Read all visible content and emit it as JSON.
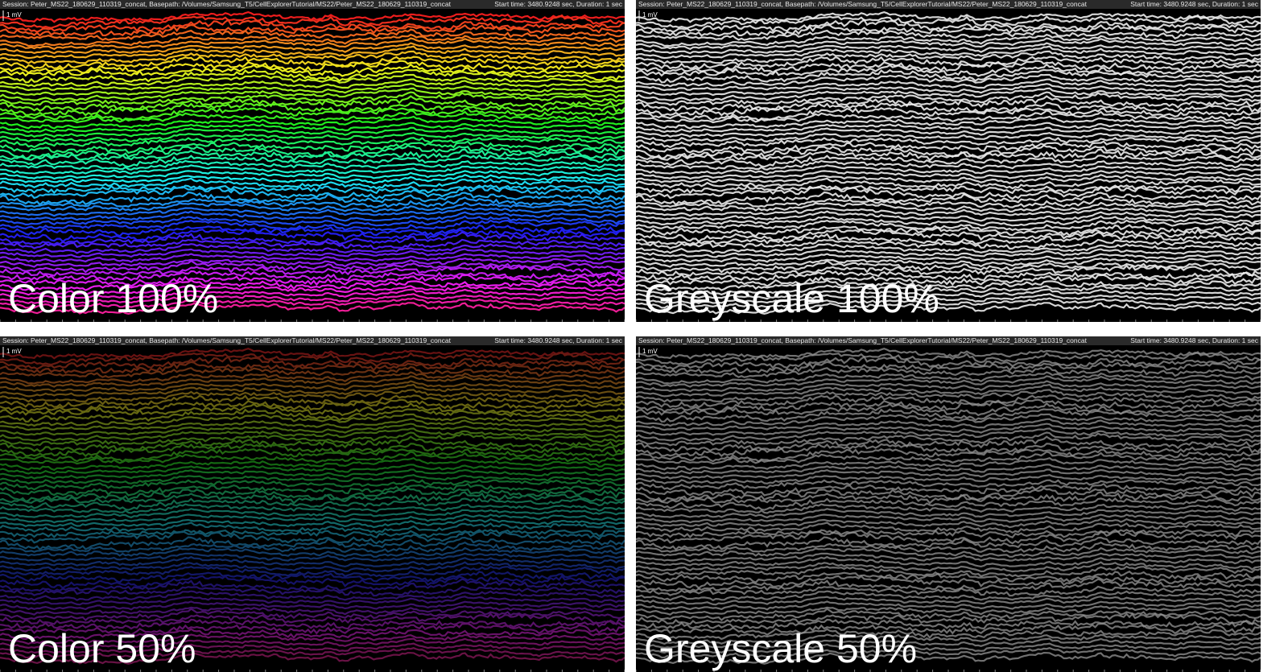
{
  "panels": [
    {
      "session": "Session: Peter_MS22_180629_110319_concat, Basepath: /Volumes/Samsung_T5/CellExplorerTutorial/MS22/Peter_MS22_180629_110319_concat",
      "time": "Start time: 3480.9248 sec, Duration: 1 sec",
      "scale": "1 mV",
      "label": "Color 100%"
    },
    {
      "session": "Session: Peter_MS22_180629_110319_concat, Basepath: /Volumes/Samsung_T5/CellExplorerTutorial/MS22/Peter_MS22_180629_110319_concat",
      "time": "Start time: 3480.9248 sec, Duration: 1 sec",
      "scale": "1 mV",
      "label": "Greyscale 100%"
    },
    {
      "session": "Session: Peter_MS22_180629_110319_concat, Basepath: /Volumes/Samsung_T5/CellExplorerTutorial/MS22/Peter_MS22_180629_110319_concat",
      "time": "Start time: 3480.9248 sec, Duration: 1 sec",
      "scale": "1 mV",
      "label": "Color 50%"
    },
    {
      "session": "Session: Peter_MS22_180629_110319_concat, Basepath: /Volumes/Samsung_T5/CellExplorerTutorial/MS22/Peter_MS22_180629_110319_concat",
      "time": "Start time: 3480.9248 sec, Duration: 1 sec",
      "scale": "1 mV",
      "label": "Greyscale 50%"
    }
  ]
}
